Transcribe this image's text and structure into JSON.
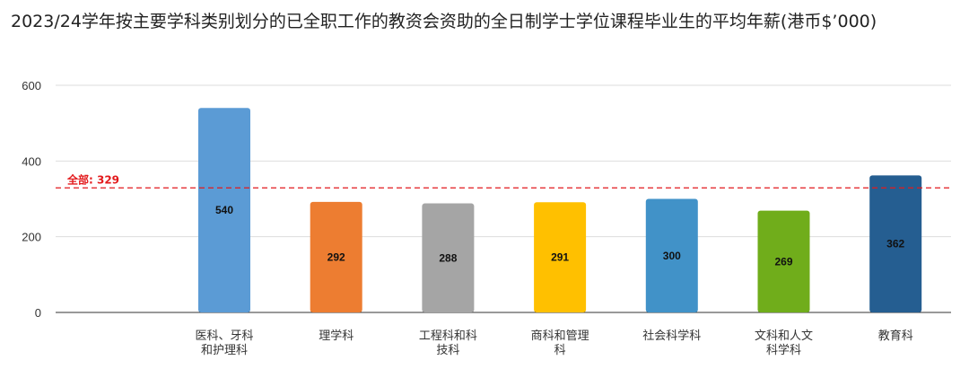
{
  "chart_data": {
    "type": "bar",
    "title": "2023/24学年按主要学科类别划分的已全职工作的教资会资助的全日制学士学位课程毕业生的平均年薪(港币$’000)",
    "categories": [
      [
        "医科、牙科",
        "和护理科"
      ],
      [
        "理学科"
      ],
      [
        "工程科和科",
        "技科"
      ],
      [
        "商科和管理",
        "科"
      ],
      [
        "社会科学科"
      ],
      [
        "文科和人文",
        "科学科"
      ],
      [
        "教育科"
      ]
    ],
    "values": [
      540,
      292,
      288,
      291,
      300,
      269,
      362
    ],
    "data_labels": [
      "540",
      "292",
      "288",
      "291",
      "300",
      "269",
      "362"
    ],
    "colors": [
      "#5b9bd5",
      "#ed7d31",
      "#a5a5a5",
      "#ffc000",
      "#4192c8",
      "#70ad1b",
      "#255e91"
    ],
    "y_ticks": [
      "0",
      "200",
      "400",
      "600"
    ],
    "y_tick_values": [
      0,
      200,
      400,
      600
    ],
    "ylim": [
      0,
      600
    ],
    "grid": true,
    "reference_line": {
      "label": "全部: 329",
      "value": 329,
      "color": "#e31a1c"
    }
  }
}
